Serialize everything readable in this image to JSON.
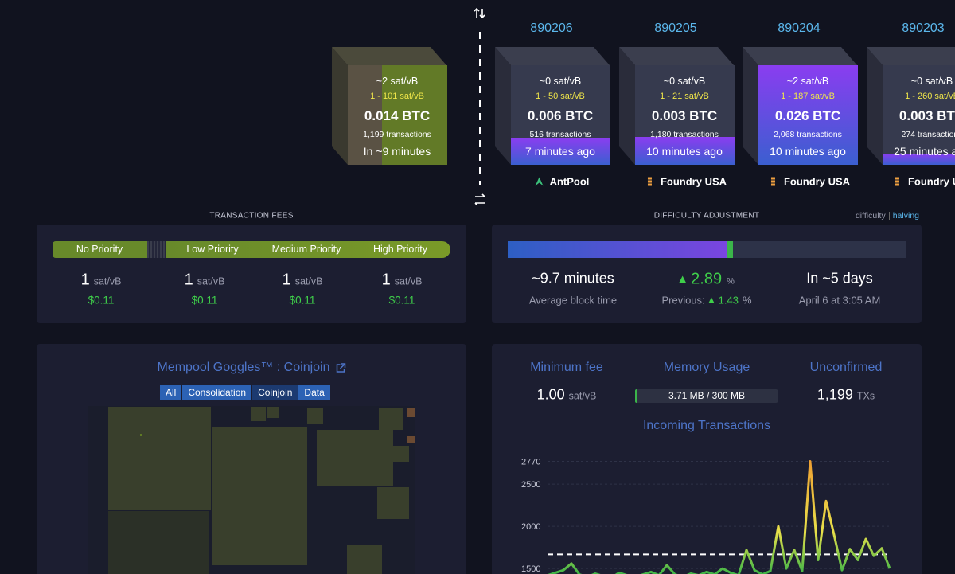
{
  "mempool_block": {
    "fee": "~2 sat/vB",
    "fee_range": "1 - 101 sat/vB",
    "total": "0.014 BTC",
    "transactions": "1,199 transactions",
    "eta": "In ~9 minutes"
  },
  "blocks": [
    {
      "height": "890206",
      "fee": "~0 sat/vB",
      "fee_range": "1 - 50 sat/vB",
      "total": "0.006 BTC",
      "transactions": "516 transactions",
      "time": "7 minutes ago",
      "pool": "AntPool"
    },
    {
      "height": "890205",
      "fee": "~0 sat/vB",
      "fee_range": "1 - 21 sat/vB",
      "total": "0.003 BTC",
      "transactions": "1,180 transactions",
      "time": "10 minutes ago",
      "pool": "Foundry USA"
    },
    {
      "height": "890204",
      "fee": "~2 sat/vB",
      "fee_range": "1 - 187 sat/vB",
      "total": "0.026 BTC",
      "transactions": "2,068 transactions",
      "time": "10 minutes ago",
      "pool": "Foundry USA"
    },
    {
      "height": "890203",
      "fee": "~0 sat/vB",
      "fee_range": "1 - 260 sat/vB",
      "total": "0.003 BTC",
      "transactions": "274 transactions",
      "time": "25 minutes ago",
      "pool": "Foundry USA"
    }
  ],
  "fees": {
    "title": "TRANSACTION FEES",
    "tiers": [
      {
        "label": "No Priority",
        "rate": "1",
        "unit": "sat/vB",
        "usd": "$0.11"
      },
      {
        "label": "Low Priority",
        "rate": "1",
        "unit": "sat/vB",
        "usd": "$0.11"
      },
      {
        "label": "Medium Priority",
        "rate": "1",
        "unit": "sat/vB",
        "usd": "$0.11"
      },
      {
        "label": "High Priority",
        "rate": "1",
        "unit": "sat/vB",
        "usd": "$0.11"
      }
    ]
  },
  "difficulty": {
    "title": "DIFFICULTY ADJUSTMENT",
    "toggle": [
      "difficulty",
      "halving"
    ],
    "progress": [
      55,
      1.6
    ],
    "stats": [
      {
        "value": "~9.7 minutes",
        "label": "Average block time"
      },
      {
        "value": "2.89",
        "unit": "%",
        "label": "Previous:",
        "previous": "1.43",
        "previous_unit": "%"
      },
      {
        "value": "In ~5 days",
        "label": "April 6 at 3:05 AM"
      }
    ]
  },
  "goggles": {
    "title": "Mempool Goggles™ : Coinjoin",
    "filters": [
      "All",
      "Consolidation",
      "Coinjoin",
      "Data"
    ]
  },
  "mempool": {
    "stats": [
      {
        "label": "Minimum fee",
        "value": "1.00",
        "unit": "sat/vB"
      },
      {
        "label": "Memory Usage",
        "value": "3.71 MB / 300 MB",
        "percent": 1.24
      },
      {
        "label": "Unconfirmed",
        "value": "1,199",
        "unit": "TXs"
      }
    ]
  },
  "chart_data": {
    "type": "line",
    "title": "Incoming Transactions",
    "ylim": [
      1435,
      2860
    ],
    "yticks": [
      1500,
      2000,
      2500,
      2770
    ],
    "reference_line": 1667,
    "values": [
      1420,
      1450,
      1480,
      1560,
      1430,
      1400,
      1440,
      1410,
      1390,
      1450,
      1420,
      1400,
      1430,
      1460,
      1420,
      1540,
      1430,
      1400,
      1440,
      1420,
      1460,
      1430,
      1500,
      1450,
      1420,
      1720,
      1480,
      1430,
      1470,
      2000,
      1500,
      1720,
      1470,
      2770,
      1600,
      2300,
      1900,
      1480,
      1730,
      1600,
      1850,
      1650,
      1740,
      1500
    ]
  }
}
